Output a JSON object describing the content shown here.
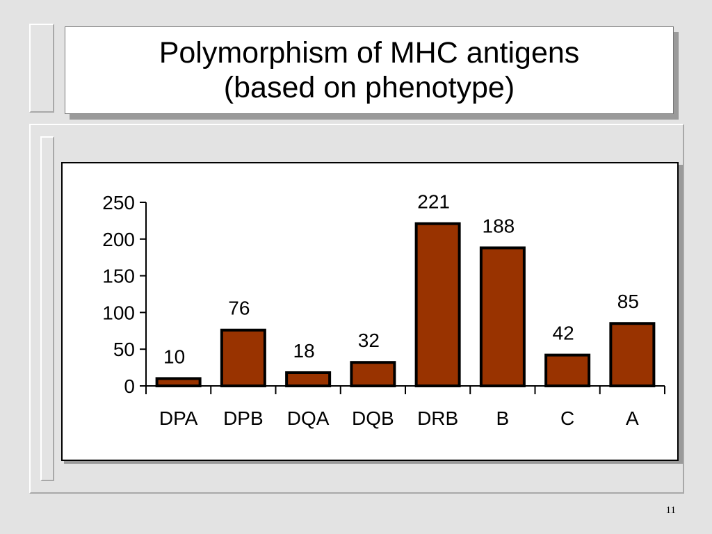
{
  "slide": {
    "title": "Polymorphism of MHC antigens\n(based on phenotype)",
    "page_number": "11"
  },
  "colors": {
    "bar_fill": "#993300",
    "bar_stroke": "#000000",
    "background": "#e3e3e3"
  },
  "chart_data": {
    "type": "bar",
    "title": "",
    "xlabel": "",
    "ylabel": "",
    "categories": [
      "DPA",
      "DPB",
      "DQA",
      "DQB",
      "DRB",
      "B",
      "C",
      "A"
    ],
    "values": [
      10,
      76,
      18,
      32,
      221,
      188,
      42,
      85
    ],
    "data_labels": [
      "10",
      "76",
      "18",
      "32",
      "221",
      "188",
      "42",
      "85"
    ],
    "ylim": [
      0,
      250
    ],
    "yticks": [
      0,
      50,
      100,
      150,
      200,
      250
    ],
    "ytick_labels": [
      "0",
      "50",
      "100",
      "150",
      "200",
      "250"
    ],
    "grid": false,
    "legend": "none"
  }
}
